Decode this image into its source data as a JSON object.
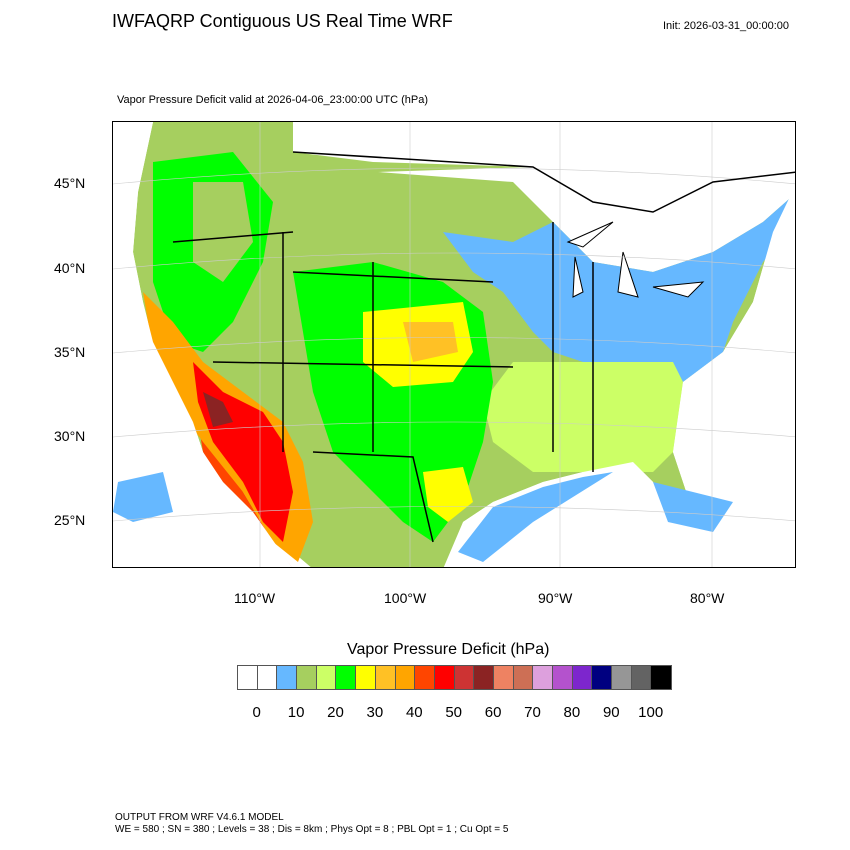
{
  "header": {
    "title": "IWFAQRP Contiguous US Real Time WRF",
    "init": "Init: 2026-03-31_00:00:00",
    "subtitle": "Vapor Pressure Deficit valid at 2026-04-06_23:00:00 UTC   (hPa)"
  },
  "map": {
    "lat_labels": [
      "45°N",
      "40°N",
      "35°N",
      "30°N",
      "25°N"
    ],
    "lon_labels": [
      "110°W",
      "100°W",
      "90°W",
      "80°W"
    ]
  },
  "colorbar": {
    "title": "Vapor Pressure Deficit  (hPa)",
    "colors": [
      "#ffffff",
      "#ffffff",
      "#66b8ff",
      "#a6cf5f",
      "#ccff66",
      "#00ff00",
      "#ffff00",
      "#ffc125",
      "#ffa500",
      "#ff4500",
      "#ff0000",
      "#cd3333",
      "#8b2323",
      "#ee8262",
      "#cd6f55",
      "#dda0dd",
      "#b452cd",
      "#7d26cd",
      "#000080",
      "#969696",
      "#636363",
      "#000000"
    ],
    "labels": [
      "0",
      "10",
      "20",
      "30",
      "40",
      "50",
      "60",
      "70",
      "80",
      "90",
      "100"
    ]
  },
  "footer": {
    "line1": "OUTPUT FROM WRF V4.6.1 MODEL",
    "line2": "WE = 580 ; SN = 380 ; Levels = 38 ; Dis = 8km ; Phys Opt = 8 ; PBL Opt = 1 ; Cu Opt = 5"
  }
}
